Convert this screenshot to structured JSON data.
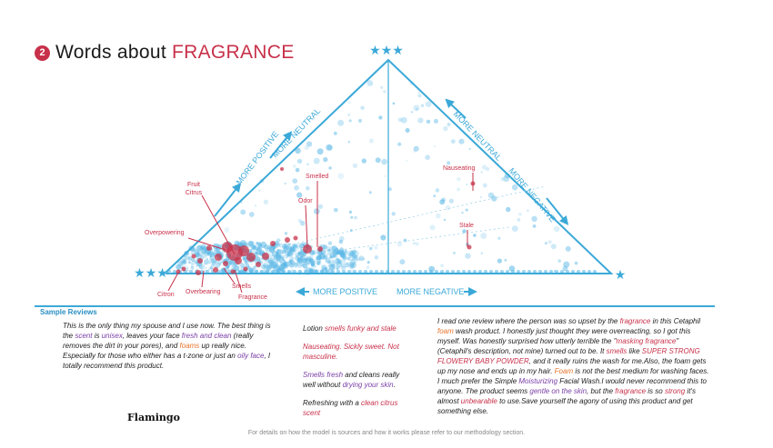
{
  "title": {
    "number": "2",
    "text": "Words about",
    "accent": "FRAGRANCE"
  },
  "chart_data": {
    "type": "scatter",
    "subtype": "ternary",
    "corners": {
      "top": "★★★",
      "left": "★★★",
      "right": "★"
    },
    "axis_labels": {
      "left_outer": "MORE POSITIVE",
      "left_inner": "MORE NEUTRAL",
      "right_inner": "MORE NEUTRAL",
      "right_outer": "MORE NEGATIVE",
      "bottom_left": "MORE POSITIVE",
      "bottom_right": "MORE NEGATIVE"
    },
    "annotations": [
      {
        "label": "Fruit\nCitrus",
        "color": "#c8314a"
      },
      {
        "label": "Smelled",
        "color": "#c8314a"
      },
      {
        "label": "Odor",
        "color": "#c8314a"
      },
      {
        "label": "Overpowering",
        "color": "#c8314a"
      },
      {
        "label": "Nauseating",
        "color": "#c8314a"
      },
      {
        "label": "Stale",
        "color": "#c8314a"
      },
      {
        "label": "Citron",
        "color": "#c8314a"
      },
      {
        "label": "Overbearing",
        "color": "#c8314a"
      },
      {
        "label": "Smells",
        "color": "#c8314a"
      },
      {
        "label": "Fragrance",
        "color": "#c8314a"
      }
    ],
    "colors": {
      "triangle": "#3ba9d8",
      "points": "#5ab7e6",
      "highlight": "#c8314a"
    }
  },
  "sample_reviews": {
    "heading": "Sample Reviews",
    "review1": [
      {
        "t": "This is the only thing my spouse and I use now. The best thing is the "
      },
      {
        "t": "scent",
        "c": "purple"
      },
      {
        "t": " is "
      },
      {
        "t": "unisex",
        "c": "purple"
      },
      {
        "t": ", leaves your face "
      },
      {
        "t": "fresh and clean",
        "c": "purple"
      },
      {
        "t": " (really removes the dirt in your pores), and "
      },
      {
        "t": "foams",
        "c": "orange"
      },
      {
        "t": " up really nice. Especially for those who either has a t-zone or just an "
      },
      {
        "t": "oily face",
        "c": "purple"
      },
      {
        "t": ", I totally recommend this product."
      }
    ],
    "review2": [
      [
        {
          "t": "Lotion "
        },
        {
          "t": "smells funky and stale",
          "c": "red"
        }
      ],
      [
        {
          "t": "Nauseating. Sickly sweet. Not masculine.",
          "c": "red"
        }
      ],
      [
        {
          "t": "Smells fresh",
          "c": "purple"
        },
        {
          "t": " and cleans really well without "
        },
        {
          "t": "drying your skin",
          "c": "purple"
        },
        {
          "t": "."
        }
      ],
      [
        {
          "t": "Refreshing with a "
        },
        {
          "t": "clean citrus scent",
          "c": "red"
        }
      ]
    ],
    "review3": [
      {
        "t": "I read one review where the person was so upset by the "
      },
      {
        "t": "fragrance",
        "c": "red"
      },
      {
        "t": " in this Cetaphil "
      },
      {
        "t": "foam",
        "c": "orange"
      },
      {
        "t": " wash product. I honestly just thought they were overreacting, so I got this myself. Was honestly surprised how utterly terrible the \""
      },
      {
        "t": "masking fragrance",
        "c": "red"
      },
      {
        "t": "\" (Cetaphil's description, not mine) turned out to be. It "
      },
      {
        "t": "smells",
        "c": "red"
      },
      {
        "t": " like "
      },
      {
        "t": "SUPER STRONG FLOWERY BABY POWDER",
        "c": "red"
      },
      {
        "t": ", and it really ruins the wash for me.Also, the foam gets up my nose and ends up in my hair. "
      },
      {
        "t": "Foam",
        "c": "orange"
      },
      {
        "t": " is not the best medium for washing faces. I much prefer the Simple "
      },
      {
        "t": "Moisturizing",
        "c": "purple"
      },
      {
        "t": " Facial Wash.I would never recommend this to anyone. The product seems "
      },
      {
        "t": "gentle on the skin",
        "c": "purple"
      },
      {
        "t": ", but the "
      },
      {
        "t": "fragrance",
        "c": "red"
      },
      {
        "t": " is so "
      },
      {
        "t": "strong",
        "c": "red"
      },
      {
        "t": " it's almost "
      },
      {
        "t": "unbearable",
        "c": "red"
      },
      {
        "t": " to use.Save yourself the agony of using this product and get something else."
      }
    ]
  },
  "brand": "Flamingo",
  "footer": "For details on how the model is sources and how it works please refer to our methodology section."
}
